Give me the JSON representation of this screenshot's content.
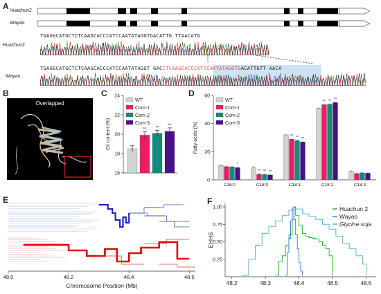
{
  "panelA": {
    "label": "A",
    "gene_rows": [
      {
        "name": "Huachun2"
      },
      {
        "name": "Wayao"
      }
    ],
    "seq_rows": [
      {
        "name": "Huachun2",
        "sequence": "TGAGGCATGCTCTCAAGCACCCATCCAATATAGGTGACATTG TTAACATG"
      },
      {
        "name": "Wayao",
        "seq_before": "TGAGGCATGCTCTCAAGCACCCATCCAATATAGGT GAC",
        "seq_insert": "CTCAAGCACCCATCCAATATAGGTG",
        "seq_after": "ACATTGTT AACA"
      }
    ],
    "insert_color": "#d9534f",
    "highlight_color": "#cfe2f3"
  },
  "panelB": {
    "label": "B",
    "title": "Overlapped"
  },
  "panelC": {
    "label": "C",
    "chart_data": {
      "type": "bar",
      "ylabel": "Oil content (%)",
      "ylim": [
        16,
        24
      ],
      "yticks": [
        16,
        18,
        20,
        22,
        24
      ],
      "series": [
        {
          "name": "WT",
          "value": 18.5,
          "err": 0.3,
          "color": "#d3d3d3",
          "sig": ""
        },
        {
          "name": "Com-1",
          "value": 19.9,
          "err": 0.35,
          "color": "#e91e63",
          "sig": "**"
        },
        {
          "name": "Com-2",
          "value": 20.1,
          "err": 0.3,
          "color": "#138a7e",
          "sig": "**"
        },
        {
          "name": "Com-3",
          "value": 20.3,
          "err": 0.35,
          "color": "#4b0f87",
          "sig": "**"
        }
      ],
      "legend": "top-left"
    }
  },
  "panelD": {
    "label": "D",
    "chart_data": {
      "type": "bar",
      "ylabel": "Fatty acids (%)",
      "ylim": [
        0,
        60
      ],
      "yticks": [
        0,
        20,
        40,
        60
      ],
      "categories": [
        "C16:0",
        "C18:0",
        "C18:1",
        "C18:2",
        "C18:3"
      ],
      "series": [
        {
          "name": "WT",
          "color": "#d3d3d3",
          "values": [
            10.2,
            9.0,
            32.0,
            51.0,
            6.0
          ],
          "sig": [
            "",
            "",
            "",
            "",
            ""
          ]
        },
        {
          "name": "Com-1",
          "color": "#e91e63",
          "values": [
            9.5,
            4.0,
            29.0,
            53.5,
            4.5
          ],
          "sig": [
            "",
            "**",
            "**",
            "**",
            ""
          ]
        },
        {
          "name": "Com-2",
          "color": "#138a7e",
          "values": [
            9.3,
            3.8,
            28.0,
            53.8,
            5.0
          ],
          "sig": [
            "",
            "**",
            "**",
            "**",
            ""
          ]
        },
        {
          "name": "Com-3",
          "color": "#4b0f87",
          "values": [
            8.7,
            3.5,
            27.0,
            55.0,
            4.8
          ],
          "sig": [
            "*",
            "**",
            "**",
            "**",
            ""
          ]
        }
      ],
      "legend": "top-left"
    }
  },
  "panelE": {
    "label": "E",
    "chart_data": {
      "type": "line",
      "xlabel": "Chromosome Position (Mb)",
      "xlim": [
        48.0,
        48.62
      ],
      "xticks": [
        48.0,
        48.2,
        48.4,
        48.6
      ],
      "tick_labels": [
        "48.0",
        "48.2",
        "48.4",
        "48.6"
      ],
      "series": [
        {
          "color": "#2222cc"
        },
        {
          "color": "#e00000"
        }
      ]
    }
  },
  "panelF": {
    "label": "F",
    "chart_data": {
      "type": "line",
      "ylabel": "EHHS",
      "xlim": [
        48.18,
        48.63
      ],
      "ylim": [
        0,
        1.05
      ],
      "xticks": [
        48.2,
        48.3,
        48.4,
        48.5,
        48.6
      ],
      "tick_labels": [
        "48.2",
        "48.3",
        "48.4",
        "48.5",
        "48.6"
      ],
      "yticks": [
        0.25,
        0.5,
        0.75,
        1.0
      ],
      "ytick_labels": [
        "0.25",
        "0.50",
        "0.75",
        "1.00"
      ],
      "legend": "top-right",
      "series": [
        {
          "name": "Huachun 2",
          "color": "#2eb82e",
          "x": [
            48.33,
            48.34,
            48.35,
            48.36,
            48.37,
            48.38,
            48.385,
            48.39,
            48.4,
            48.41,
            48.42,
            48.43,
            48.44,
            48.45,
            48.46,
            48.47,
            48.48,
            48.49,
            48.5
          ],
          "y": [
            0.02,
            0.22,
            0.3,
            0.45,
            0.6,
            0.82,
            1.0,
            0.88,
            0.73,
            0.62,
            0.58,
            0.56,
            0.55,
            0.54,
            0.5,
            0.45,
            0.4,
            0.3,
            0.02
          ]
        },
        {
          "name": "Wayao",
          "color": "#3b7fd9",
          "x": [
            48.36,
            48.365,
            48.37,
            48.375,
            48.38,
            48.385,
            48.39,
            48.395,
            48.4,
            48.405,
            48.41
          ],
          "y": [
            0.02,
            0.35,
            0.55,
            0.8,
            0.97,
            0.82,
            0.6,
            0.4,
            0.2,
            0.08,
            0.02
          ]
        },
        {
          "name": "Glycine soja",
          "color": "#5bb7c9",
          "x": [
            48.23,
            48.25,
            48.27,
            48.29,
            48.31,
            48.33,
            48.35,
            48.37,
            48.38,
            48.39,
            48.41,
            48.43,
            48.45,
            48.47,
            48.49,
            48.51,
            48.53,
            48.55,
            48.57,
            48.59,
            48.6
          ],
          "y": [
            0.02,
            0.25,
            0.45,
            0.62,
            0.72,
            0.8,
            0.88,
            0.95,
            0.99,
            0.97,
            0.9,
            0.86,
            0.82,
            0.75,
            0.68,
            0.58,
            0.48,
            0.4,
            0.3,
            0.18,
            0.02
          ]
        }
      ]
    }
  }
}
